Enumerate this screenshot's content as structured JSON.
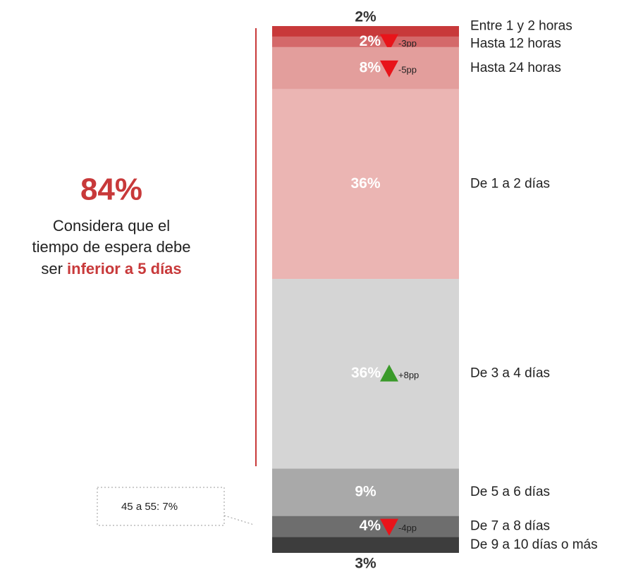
{
  "chart_data": {
    "type": "stacked-bar",
    "segments": [
      {
        "name": "Entre 1 y 2 horas",
        "value": 2,
        "value_label": "2%",
        "color": "#c8393a"
      },
      {
        "name": "Hasta 12 horas",
        "value": 2,
        "value_label": "2%",
        "color": "#d4696a",
        "change": -3,
        "change_label": "-3pp"
      },
      {
        "name": "Hasta 24 horas",
        "value": 8,
        "value_label": "8%",
        "color": "#e39e9c",
        "change": -5,
        "change_label": "-5pp"
      },
      {
        "name": "De 1 a 2 días",
        "value": 36,
        "value_label": "36%",
        "color": "#ebb5b3"
      },
      {
        "name": "De 3 a 4 días",
        "value": 36,
        "value_label": "36%",
        "color": "#d5d5d5",
        "change": 8,
        "change_label": "+8pp"
      },
      {
        "name": "De 5 a 6 días",
        "value": 9,
        "value_label": "9%",
        "color": "#a9a9a9"
      },
      {
        "name": "De 7 a 8 días",
        "value": 4,
        "value_label": "4%",
        "color": "#6e6e6e",
        "change": -4,
        "change_label": "-4pp"
      },
      {
        "name": "De 9 a 10 días o más",
        "value": 3,
        "value_label": "3%",
        "color": "#3d3d3d"
      }
    ],
    "summary": {
      "value": 84,
      "value_label": "84%",
      "lines": [
        "Considera que el",
        "tiempo de espera debe"
      ],
      "last_line_prefix": "ser",
      "last_line_highlight": "inferior a 5 días"
    },
    "callout": "45 a 55: 7%"
  }
}
